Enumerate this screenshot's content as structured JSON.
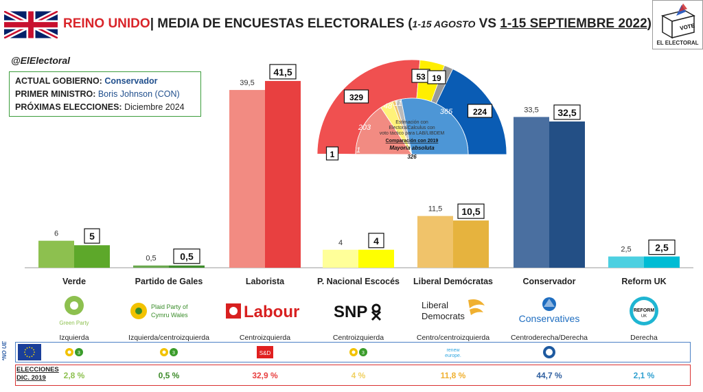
{
  "header": {
    "country": "REINO UNIDO",
    "separator": "|",
    "title": "MEDIA DE ENCUESTAS ELECTORALES",
    "period_open": "(",
    "period1": "1-15 AGOSTO",
    "vs": "VS",
    "period2": "1-15 SEPTIEMBRE 2022",
    "period_close": ")"
  },
  "logo": {
    "vote_text": "VOTE",
    "name": "EL ELECTORAL"
  },
  "handle": "@ElElectoral",
  "info": {
    "gov_label": "ACTUAL GOBIERNO:",
    "gov_value": "Conservador",
    "pm_label": "PRIMER MINISTRO:",
    "pm_value": "Boris Johnson (CON)",
    "next_label": "PRÓXIMAS ELECCIONES:",
    "next_value": "Diciembre 2024"
  },
  "chart_data": [
    {
      "type": "bar",
      "categories": [
        "Verde",
        "Partido de Gales",
        "Laborista",
        "P. Nacional Escocés",
        "Liberal Demócratas",
        "Conservador",
        "Reform UK"
      ],
      "series": [
        {
          "values": [
            6,
            0.5,
            39.5,
            4,
            11.5,
            33.5,
            2.5
          ]
        },
        {
          "values": [
            5,
            0.5,
            41.5,
            4,
            10.5,
            32.5,
            2.5
          ]
        }
      ],
      "labels_prev": [
        "6",
        "0,5",
        "39,5",
        "4",
        "11,5",
        "33,5",
        "2,5"
      ],
      "labels_curr": [
        "5",
        "0,5",
        "41,5",
        "4",
        "10,5",
        "32,5",
        "2,5"
      ],
      "colors_prev": [
        "#8dc04f",
        "#6aa84f",
        "#f28b82",
        "#ffff99",
        "#f0c36a",
        "#4a6fa0",
        "#4dd0e1"
      ],
      "colors_curr": [
        "#5da82a",
        "#3d8b2a",
        "#e84040",
        "#ffff00",
        "#e6b33e",
        "#234f85",
        "#00bcd4"
      ],
      "ylim": [
        0,
        45
      ]
    },
    {
      "type": "pie",
      "title_lines": [
        "Estimación con",
        "ElectoralCalculus con",
        "voto táctico para LAB/LIBDEM"
      ],
      "comparison": "Comparación con 2019",
      "majority_label": "Mayoría absoluta",
      "majority_value": "326",
      "outer": [
        {
          "name": "Verde",
          "value": 1,
          "label": "1",
          "color": "#5da82a"
        },
        {
          "name": "Laborista",
          "value": 329,
          "label": "329",
          "color": "#f05050"
        },
        {
          "name": "SNP",
          "value": 53,
          "label": "53",
          "color": "#ffee00"
        },
        {
          "name": "Otros",
          "value": 19,
          "label": "19",
          "color": "#999999"
        },
        {
          "name": "Conservador",
          "value": 224,
          "label": "224",
          "color": "#0a5cb4"
        }
      ],
      "inner": [
        {
          "name": "Verde",
          "value": 1,
          "label": "1",
          "color": "#7cc060"
        },
        {
          "name": "Laborista",
          "value": 203,
          "label": "203",
          "color": "#f28b82"
        },
        {
          "name": "SNP",
          "value": 48,
          "label": "48",
          "color": "#fff27a"
        },
        {
          "name": "Liberal Demócratas",
          "value": 11,
          "label": "11",
          "color": "#f0c36a"
        },
        {
          "name": "Otros",
          "value": 22,
          "label": "",
          "color": "#bbbbbb"
        },
        {
          "name": "Conservador",
          "value": 365,
          "label": "365",
          "color": "#4d96d6"
        }
      ]
    }
  ],
  "parties": [
    {
      "name": "Verde",
      "logo_text": "Green Party",
      "ideology": "Izquierda",
      "eu_group": "greens",
      "result_2019": "2,8 %",
      "color": "#8dc04f"
    },
    {
      "name": "Partido de Gales",
      "logo_text": "Plaid Cymru | Party of Wales",
      "ideology": "Izquierda/centroizquierda",
      "eu_group": "greens",
      "result_2019": "0,5 %",
      "color": "#3d8b2a"
    },
    {
      "name": "Laborista",
      "logo_text": "Labour",
      "ideology": "Centroizquierda",
      "eu_group": "S&D",
      "result_2019": "32,9 %",
      "color": "#e84040"
    },
    {
      "name": "P. Nacional Escocés",
      "logo_text": "SNP",
      "ideology": "Centroizquierda",
      "eu_group": "greens",
      "result_2019": "4 %",
      "color": "#f0d060"
    },
    {
      "name": "Liberal Demócratas",
      "logo_text": "Liberal Democrats",
      "ideology": "Centro/centroizquierda",
      "eu_group": "renew europe.",
      "result_2019": "11,8 %",
      "color": "#f0b030"
    },
    {
      "name": "Conservador",
      "logo_text": "Conservatives",
      "ideology": "Centroderecha/Derecha",
      "eu_group": "ECR",
      "result_2019": "44,7 %",
      "color": "#3060a0"
    },
    {
      "name": "Reform UK",
      "logo_text": "REFORM UK",
      "ideology": "Derecha",
      "eu_group": "",
      "result_2019": "2,1 %",
      "color": "#30a0d0"
    }
  ],
  "eu_label": "*NO UE",
  "elections_label": "ELECCIONES DIC. 2019"
}
